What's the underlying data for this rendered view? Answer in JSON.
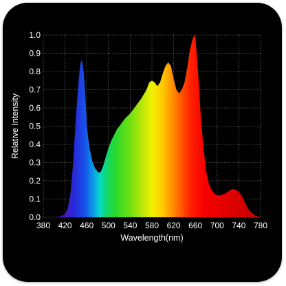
{
  "chart_data": {
    "type": "area",
    "title": "",
    "xlabel": "Wavelength(nm)",
    "ylabel": "Relative Intensity",
    "xlim": [
      380,
      780
    ],
    "ylim": [
      0,
      1.0
    ],
    "grid": true,
    "legend": "none",
    "x_ticks": [
      380,
      420,
      460,
      500,
      540,
      580,
      620,
      660,
      700,
      740,
      780
    ],
    "y_ticks": [
      0.0,
      0.1,
      0.2,
      0.3,
      0.4,
      0.5,
      0.6,
      0.7,
      0.8,
      0.9,
      1.0
    ],
    "x_tick_labels": [
      "380",
      "420",
      "460",
      "500",
      "540",
      "580",
      "620",
      "660",
      "700",
      "740",
      "780"
    ],
    "y_tick_labels": [
      "0.0",
      "0.1",
      "0.2",
      "0.3",
      "0.4",
      "0.5",
      "0.6",
      "0.7",
      "0.8",
      "0.9",
      "1.0"
    ],
    "series": [
      {
        "x": [
          380,
          400,
          410,
          420,
          425,
          430,
          435,
          440,
          445,
          448,
          450,
          452,
          455,
          458,
          460,
          465,
          470,
          475,
          480,
          483,
          486,
          490,
          495,
          500,
          505,
          510,
          515,
          520,
          530,
          540,
          550,
          560,
          570,
          575,
          580,
          585,
          590,
          595,
          600,
          605,
          610,
          615,
          620,
          625,
          630,
          635,
          640,
          645,
          650,
          655,
          658,
          660,
          663,
          667,
          670,
          675,
          680,
          685,
          690,
          695,
          700,
          705,
          710,
          715,
          720,
          725,
          730,
          735,
          740,
          745,
          750,
          755,
          760,
          770,
          780
        ],
        "y": [
          0.0,
          0.0,
          0.004,
          0.015,
          0.05,
          0.13,
          0.3,
          0.55,
          0.75,
          0.84,
          0.86,
          0.85,
          0.78,
          0.63,
          0.5,
          0.38,
          0.31,
          0.27,
          0.25,
          0.245,
          0.25,
          0.28,
          0.33,
          0.38,
          0.42,
          0.45,
          0.48,
          0.5,
          0.54,
          0.57,
          0.61,
          0.65,
          0.7,
          0.74,
          0.75,
          0.74,
          0.72,
          0.74,
          0.79,
          0.83,
          0.85,
          0.83,
          0.76,
          0.7,
          0.68,
          0.7,
          0.74,
          0.82,
          0.92,
          0.98,
          1.0,
          0.98,
          0.88,
          0.7,
          0.55,
          0.38,
          0.25,
          0.18,
          0.15,
          0.13,
          0.12,
          0.12,
          0.125,
          0.13,
          0.14,
          0.15,
          0.155,
          0.15,
          0.14,
          0.12,
          0.09,
          0.06,
          0.035,
          0.01,
          0.0
        ]
      }
    ]
  }
}
